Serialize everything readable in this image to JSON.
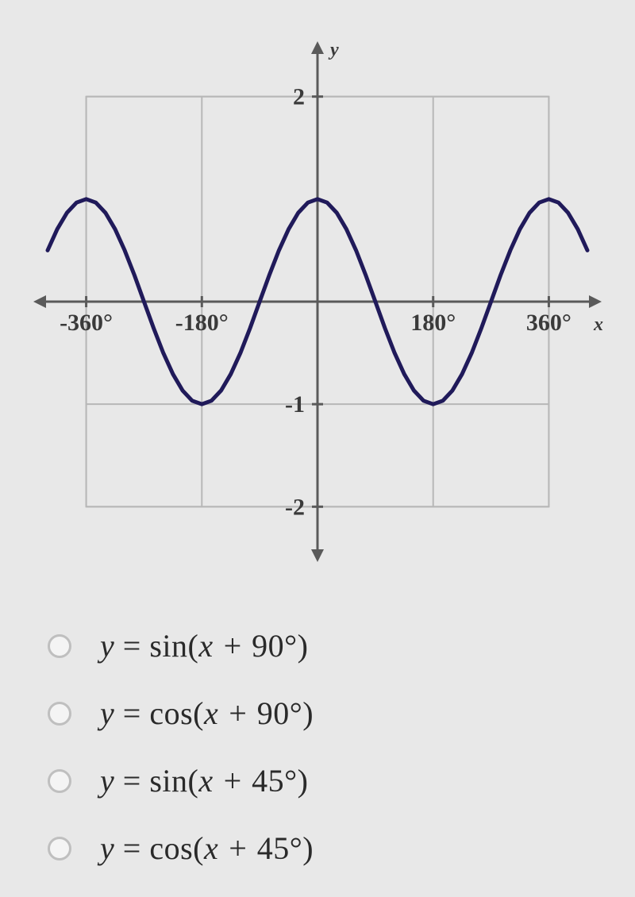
{
  "chart": {
    "type": "line",
    "x_axis_label": "x",
    "y_axis_label": "y",
    "background_color": "#e8e8e8",
    "grid_color": "#b7b7b7",
    "axis_color": "#5a5a5a",
    "curve_color": "#201a5a",
    "curve_width": 5,
    "xlim": [
      -420,
      420
    ],
    "ylim": [
      -2.4,
      2.4
    ],
    "x_ticks": [
      -360,
      -180,
      180,
      360
    ],
    "x_tick_labels": [
      "-360°",
      "-180°",
      "180°",
      "360°"
    ],
    "y_ticks": [
      -2,
      -1,
      2
    ],
    "tick_fontsize": 30,
    "axis_label_fontsize": 24,
    "grid_x": [
      -360,
      -180,
      180,
      360
    ],
    "grid_y": [
      -2,
      -1,
      2
    ],
    "curve_samples": [
      [
        -420,
        0.5
      ],
      [
        -405,
        0.707
      ],
      [
        -390,
        0.866
      ],
      [
        -375,
        0.966
      ],
      [
        -360,
        1
      ],
      [
        -345,
        0.966
      ],
      [
        -330,
        0.866
      ],
      [
        -315,
        0.707
      ],
      [
        -300,
        0.5
      ],
      [
        -285,
        0.259
      ],
      [
        -270,
        0
      ],
      [
        -255,
        -0.259
      ],
      [
        -240,
        -0.5
      ],
      [
        -225,
        -0.707
      ],
      [
        -210,
        -0.866
      ],
      [
        -195,
        -0.966
      ],
      [
        -180,
        -1
      ],
      [
        -165,
        -0.966
      ],
      [
        -150,
        -0.866
      ],
      [
        -135,
        -0.707
      ],
      [
        -120,
        -0.5
      ],
      [
        -105,
        -0.259
      ],
      [
        -90,
        0
      ],
      [
        -75,
        0.259
      ],
      [
        -60,
        0.5
      ],
      [
        -45,
        0.707
      ],
      [
        -30,
        0.866
      ],
      [
        -15,
        0.966
      ],
      [
        0,
        1
      ],
      [
        15,
        0.966
      ],
      [
        30,
        0.866
      ],
      [
        45,
        0.707
      ],
      [
        60,
        0.5
      ],
      [
        75,
        0.259
      ],
      [
        90,
        0
      ],
      [
        105,
        -0.259
      ],
      [
        120,
        -0.5
      ],
      [
        135,
        -0.707
      ],
      [
        150,
        -0.866
      ],
      [
        165,
        -0.966
      ],
      [
        180,
        -1
      ],
      [
        195,
        -0.966
      ],
      [
        210,
        -0.866
      ],
      [
        225,
        -0.707
      ],
      [
        240,
        -0.5
      ],
      [
        255,
        -0.259
      ],
      [
        270,
        0
      ],
      [
        285,
        0.259
      ],
      [
        300,
        0.5
      ],
      [
        315,
        0.707
      ],
      [
        330,
        0.866
      ],
      [
        345,
        0.966
      ],
      [
        360,
        1
      ],
      [
        375,
        0.966
      ],
      [
        390,
        0.866
      ],
      [
        405,
        0.707
      ],
      [
        420,
        0.5
      ]
    ]
  },
  "options": [
    {
      "fn": "sin",
      "shift": "90°"
    },
    {
      "fn": "cos",
      "shift": "90°"
    },
    {
      "fn": "sin",
      "shift": "45°"
    },
    {
      "fn": "cos",
      "shift": "45°"
    }
  ],
  "labels": {
    "y_eq": "y",
    "eq": " = ",
    "lp": "(",
    "x_plus": "x + ",
    "rp": ")"
  }
}
